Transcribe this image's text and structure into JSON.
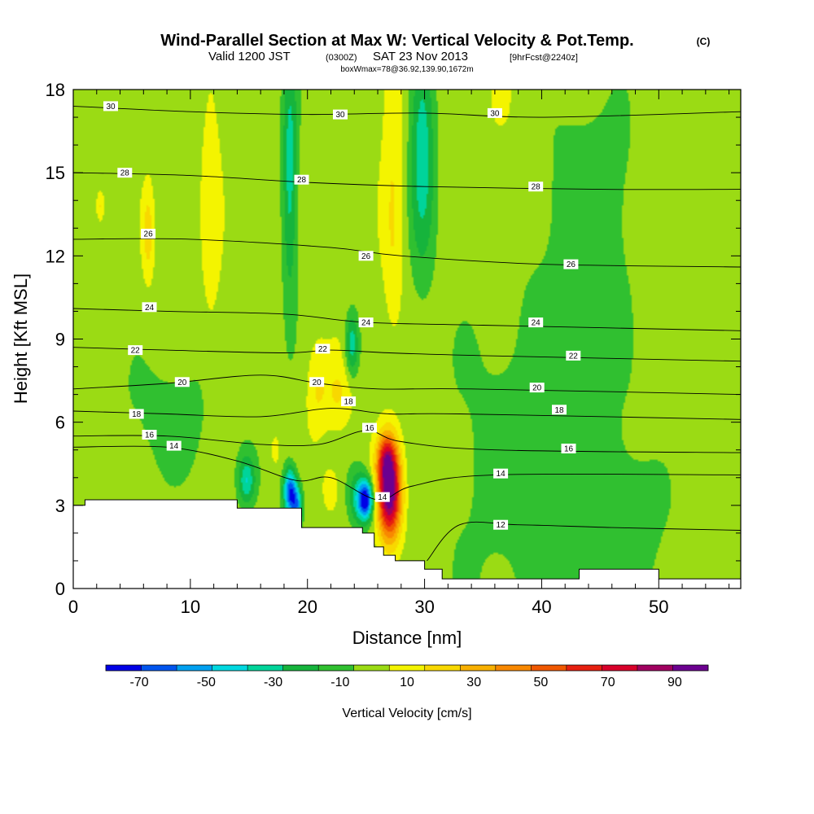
{
  "chart_data": {
    "type": "heatmap",
    "title": "Wind-Parallel Section at Max W: Vertical Velocity & Pot.Temp.",
    "title_mark": "(C)",
    "subtitle": {
      "valid": "Valid 1200 JST",
      "utc": "(0300Z)",
      "date": "SAT 23 Nov 2013",
      "fcst": "[9hrFcst@2240z]"
    },
    "boxline": "boxWmax=78@36.92,139.90,1672m",
    "xlabel": "Distance [nm]",
    "ylabel": "Height [Kft MSL]",
    "xlim": [
      0,
      57
    ],
    "ylim": [
      0,
      18
    ],
    "xticks": [
      "0",
      "10",
      "20",
      "30",
      "40",
      "50"
    ],
    "yticks": [
      "0",
      "3",
      "6",
      "9",
      "12",
      "15",
      "18"
    ],
    "colorbar": {
      "label": "Vertical Velocity [cm/s]",
      "tick_labels": [
        "-70",
        "-50",
        "-30",
        "-10",
        "10",
        "30",
        "50",
        "70",
        "90"
      ],
      "bounds": [
        -80,
        100
      ],
      "colors": [
        "#0000e6",
        "#0055ee",
        "#00a0f0",
        "#00d8e0",
        "#00d49a",
        "#16b43c",
        "#30c030",
        "#9bdb14",
        "#f4f400",
        "#f8d800",
        "#f8b000",
        "#f88800",
        "#f05800",
        "#e62010",
        "#d8002a",
        "#a00060",
        "#6c0090"
      ]
    },
    "fields": {
      "background_w": 0,
      "features": [
        {
          "x": 27.0,
          "z": 3.5,
          "sx": 0.7,
          "sz": 1.2,
          "w": 102
        },
        {
          "x": 26.7,
          "z": 4.7,
          "sx": 0.55,
          "sz": 0.6,
          "w": 35
        },
        {
          "x": 25.0,
          "z": 3.2,
          "sx": 0.45,
          "sz": 0.5,
          "w": -72
        },
        {
          "x": 24.3,
          "z": 3.3,
          "sx": 0.55,
          "sz": 0.7,
          "w": -28
        },
        {
          "x": 18.5,
          "z": 3.5,
          "sx": 0.4,
          "sz": 0.6,
          "w": -66
        },
        {
          "x": 19.1,
          "z": 3.0,
          "sx": 0.35,
          "sz": 0.5,
          "w": -48
        },
        {
          "x": 17.2,
          "z": 5.0,
          "sx": 0.4,
          "sz": 0.6,
          "w": 8
        },
        {
          "x": 14.8,
          "z": 3.9,
          "sx": 0.5,
          "sz": 0.6,
          "w": -35
        },
        {
          "x": 22.0,
          "z": 3.6,
          "sx": 0.5,
          "sz": 0.6,
          "w": 14
        },
        {
          "x": 27.3,
          "z": 16.5,
          "sx": 0.7,
          "sz": 3.0,
          "w": 14
        },
        {
          "x": 27.3,
          "z": 11.5,
          "sx": 0.6,
          "sz": 2.0,
          "w": 10
        },
        {
          "x": 29.8,
          "z": 16.0,
          "sx": 0.75,
          "sz": 3.0,
          "w": -35
        },
        {
          "x": 18.5,
          "z": 15.0,
          "sx": 0.45,
          "sz": 3.2,
          "w": -33
        },
        {
          "x": 11.8,
          "z": 14.0,
          "sx": 0.6,
          "sz": 4.0,
          "w": 12
        },
        {
          "x": 6.4,
          "z": 12.8,
          "sx": 0.35,
          "sz": 1.2,
          "w": 20
        },
        {
          "x": 2.3,
          "z": 13.8,
          "sx": 0.25,
          "sz": 0.4,
          "w": 18
        },
        {
          "x": 20.8,
          "z": 7.2,
          "sx": 0.6,
          "sz": 1.2,
          "w": 14
        },
        {
          "x": 22.6,
          "z": 7.0,
          "sx": 0.9,
          "sz": 1.0,
          "w": 16
        },
        {
          "x": 23.8,
          "z": 8.8,
          "sx": 0.4,
          "sz": 0.8,
          "w": -35
        },
        {
          "x": 8.5,
          "z": 6.2,
          "sx": 4.0,
          "sz": 1.8,
          "w": -9
        },
        {
          "x": 40.0,
          "z": 4.5,
          "sx": 6.0,
          "sz": 4.5,
          "w": -12
        },
        {
          "x": 47.0,
          "z": 2.0,
          "sx": 3.0,
          "sz": 2.0,
          "w": -10
        },
        {
          "x": 37.0,
          "z": 16.0,
          "sx": 3.0,
          "sz": 3.0,
          "w": 4
        },
        {
          "x": 50.0,
          "z": 11.0,
          "sx": 1.5,
          "sz": 6.0,
          "w": 4
        },
        {
          "x": 44.0,
          "z": 14.0,
          "sx": 3.5,
          "sz": 3.0,
          "w": -12
        }
      ]
    },
    "terrain_kft": [
      [
        0,
        3.0
      ],
      [
        1.0,
        3.0
      ],
      [
        1.0,
        3.2
      ],
      [
        14.0,
        3.2
      ],
      [
        14.0,
        2.9
      ],
      [
        19.5,
        2.9
      ],
      [
        19.5,
        2.2
      ],
      [
        24.7,
        2.2
      ],
      [
        24.7,
        2.0
      ],
      [
        25.7,
        2.0
      ],
      [
        25.7,
        1.5
      ],
      [
        26.5,
        1.5
      ],
      [
        26.5,
        1.2
      ],
      [
        27.5,
        1.2
      ],
      [
        27.5,
        1.0
      ],
      [
        30.0,
        1.0
      ],
      [
        30.0,
        0.7
      ],
      [
        31.5,
        0.7
      ],
      [
        31.5,
        0.35
      ],
      [
        43.2,
        0.35
      ],
      [
        43.2,
        0.7
      ],
      [
        50.0,
        0.7
      ],
      [
        50.0,
        0.35
      ],
      [
        57.0,
        0.35
      ]
    ],
    "theta_contours": [
      {
        "label": "30",
        "pts": [
          [
            0,
            17.4
          ],
          [
            10,
            17.2
          ],
          [
            20,
            17.1
          ],
          [
            30,
            17.15
          ],
          [
            40,
            17.0
          ],
          [
            57,
            17.2
          ]
        ],
        "labels_at": [
          [
            3.2,
            17.4
          ],
          [
            22.8,
            17.1
          ],
          [
            36.0,
            17.15
          ]
        ]
      },
      {
        "label": "28",
        "pts": [
          [
            0,
            15.0
          ],
          [
            10,
            14.9
          ],
          [
            20,
            14.65
          ],
          [
            30,
            14.5
          ],
          [
            45,
            14.4
          ],
          [
            57,
            14.4
          ]
        ],
        "labels_at": [
          [
            4.4,
            15.0
          ],
          [
            19.5,
            14.75
          ],
          [
            39.5,
            14.5
          ]
        ]
      },
      {
        "label": "26",
        "pts": [
          [
            0,
            12.6
          ],
          [
            10,
            12.6
          ],
          [
            22,
            12.3
          ],
          [
            28,
            12.0
          ],
          [
            40,
            11.7
          ],
          [
            57,
            11.6
          ]
        ],
        "labels_at": [
          [
            6.4,
            12.8
          ],
          [
            25.0,
            12.0
          ],
          [
            42.5,
            11.7
          ]
        ]
      },
      {
        "label": "24",
        "pts": [
          [
            0,
            10.1
          ],
          [
            8,
            10.0
          ],
          [
            18,
            9.9
          ],
          [
            25,
            9.6
          ],
          [
            35,
            9.5
          ],
          [
            57,
            9.3
          ]
        ],
        "labels_at": [
          [
            6.5,
            10.15
          ],
          [
            25.0,
            9.6
          ],
          [
            39.5,
            9.6
          ]
        ]
      },
      {
        "label": "22",
        "pts": [
          [
            0,
            8.7
          ],
          [
            8,
            8.6
          ],
          [
            18,
            8.5
          ],
          [
            22,
            8.6
          ],
          [
            27,
            8.5
          ],
          [
            35,
            8.4
          ],
          [
            57,
            8.2
          ]
        ],
        "labels_at": [
          [
            5.3,
            8.6
          ],
          [
            21.3,
            8.65
          ],
          [
            42.7,
            8.4
          ]
        ]
      },
      {
        "label": "20",
        "pts": [
          [
            0,
            7.2
          ],
          [
            8,
            7.4
          ],
          [
            16,
            7.7
          ],
          [
            21,
            7.4
          ],
          [
            26,
            7.2
          ],
          [
            34,
            7.2
          ],
          [
            57,
            7.0
          ]
        ],
        "labels_at": [
          [
            9.3,
            7.45
          ],
          [
            20.8,
            7.45
          ],
          [
            39.6,
            7.25
          ]
        ]
      },
      {
        "label": "18",
        "pts": [
          [
            0,
            6.4
          ],
          [
            8,
            6.3
          ],
          [
            16,
            6.2
          ],
          [
            22,
            6.5
          ],
          [
            27,
            6.3
          ],
          [
            33,
            6.3
          ],
          [
            57,
            6.1
          ]
        ],
        "labels_at": [
          [
            5.4,
            6.3
          ],
          [
            23.5,
            6.75
          ],
          [
            41.5,
            6.45
          ]
        ]
      },
      {
        "label": "16",
        "pts": [
          [
            0,
            5.5
          ],
          [
            8,
            5.5
          ],
          [
            16,
            5.2
          ],
          [
            21,
            5.2
          ],
          [
            25,
            5.7
          ],
          [
            28,
            5.3
          ],
          [
            36,
            5.0
          ],
          [
            57,
            4.9
          ]
        ],
        "labels_at": [
          [
            6.5,
            5.55
          ],
          [
            25.3,
            5.8
          ],
          [
            42.3,
            5.05
          ]
        ]
      },
      {
        "label": "14",
        "pts": [
          [
            0,
            5.1
          ],
          [
            8,
            5.1
          ],
          [
            14,
            4.6
          ],
          [
            19,
            3.9
          ],
          [
            22,
            4.0
          ],
          [
            26,
            3.2
          ],
          [
            29,
            3.7
          ],
          [
            36,
            4.1
          ],
          [
            57,
            4.1
          ]
        ],
        "labels_at": [
          [
            8.6,
            5.15
          ],
          [
            26.4,
            3.3
          ],
          [
            36.5,
            4.15
          ]
        ]
      },
      {
        "label": "12",
        "pts": [
          [
            30.2,
            1.0
          ],
          [
            33,
            2.3
          ],
          [
            38,
            2.3
          ],
          [
            46,
            2.2
          ],
          [
            57,
            2.1
          ]
        ],
        "labels_at": [
          [
            36.5,
            2.3
          ]
        ]
      }
    ]
  }
}
